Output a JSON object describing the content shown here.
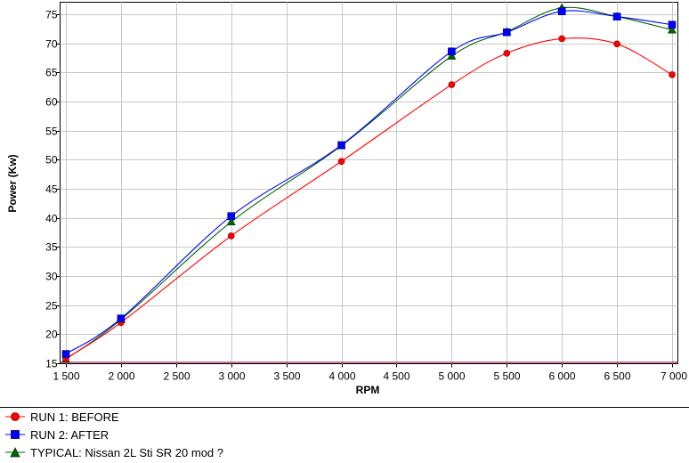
{
  "chart_data": {
    "type": "line",
    "xlabel": "RPM",
    "ylabel": "Power (Kw)",
    "xlim": [
      1500,
      7000
    ],
    "ylim": [
      15,
      76
    ],
    "x_ticks": [
      "1 500",
      "2 000",
      "2 500",
      "3 000",
      "3 500",
      "4 000",
      "4 500",
      "5 000",
      "5 500",
      "6 000",
      "6 500",
      "7 000"
    ],
    "y_ticks": [
      "15",
      "20",
      "25",
      "30",
      "35",
      "40",
      "45",
      "50",
      "55",
      "60",
      "65",
      "70",
      "75"
    ],
    "grid": true,
    "legend": "bottom",
    "series": [
      {
        "name": "RUN 1: BEFORE",
        "color": "#ff0000",
        "marker": "circle",
        "x": [
          1500,
          2000,
          3000,
          4000,
          5000,
          5500,
          6000,
          6500,
          7000
        ],
        "values": [
          15.8,
          22.0,
          36.9,
          49.7,
          62.9,
          68.3,
          70.8,
          69.9,
          64.6
        ]
      },
      {
        "name": "RUN 2: AFTER",
        "color": "#0000ff",
        "marker": "square",
        "x": [
          1500,
          2000,
          3000,
          4000,
          5000,
          5500,
          6000,
          6500,
          7000
        ],
        "values": [
          16.6,
          22.7,
          40.3,
          52.5,
          68.6,
          71.9,
          75.5,
          74.6,
          73.2
        ]
      },
      {
        "name": "TYPICAL: Nissan 2L Sti SR 20 mod ?",
        "color": "#006600",
        "marker": "triangle",
        "x": [
          1500,
          2000,
          3000,
          4000,
          5000,
          5500,
          6000,
          6500,
          7000
        ],
        "values": [
          15.7,
          22.5,
          39.3,
          52.4,
          67.8,
          72.0,
          76.1,
          74.6,
          72.3
        ]
      }
    ],
    "baseline_color": "#aa2266"
  }
}
